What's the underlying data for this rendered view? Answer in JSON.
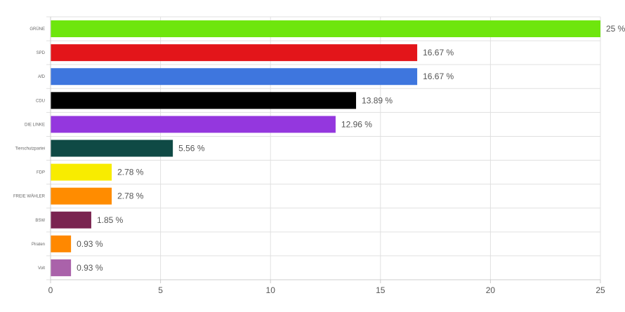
{
  "chart_data": {
    "type": "bar",
    "orientation": "horizontal",
    "categories": [
      "GRÜNE",
      "SPD",
      "AfD",
      "CDU",
      "DIE LINKE",
      "Tierschutzpartei",
      "FDP",
      "FREIE WÄHLER",
      "BSW",
      "Piraten",
      "Volt"
    ],
    "values": [
      25,
      16.67,
      16.67,
      13.89,
      12.96,
      5.56,
      2.78,
      2.78,
      1.85,
      0.93,
      0.93
    ],
    "data_labels": [
      "25 %",
      "16.67 %",
      "16.67 %",
      "13.89 %",
      "12.96 %",
      "5.56 %",
      "2.78 %",
      "2.78 %",
      "1.85 %",
      "0.93 %",
      "0.93 %"
    ],
    "colors": [
      "#6ee60d",
      "#e3151a",
      "#3e76de",
      "#000000",
      "#9437de",
      "#0f4a45",
      "#f8ec00",
      "#ff8c00",
      "#7a2450",
      "#ff8800",
      "#aa62aa"
    ],
    "xlim": [
      0,
      25
    ],
    "x_ticks": [
      0,
      5,
      10,
      15,
      20,
      25
    ],
    "x_tick_labels": [
      "0",
      "5",
      "10",
      "15",
      "20",
      "25"
    ],
    "grid": true,
    "legend": "none"
  }
}
